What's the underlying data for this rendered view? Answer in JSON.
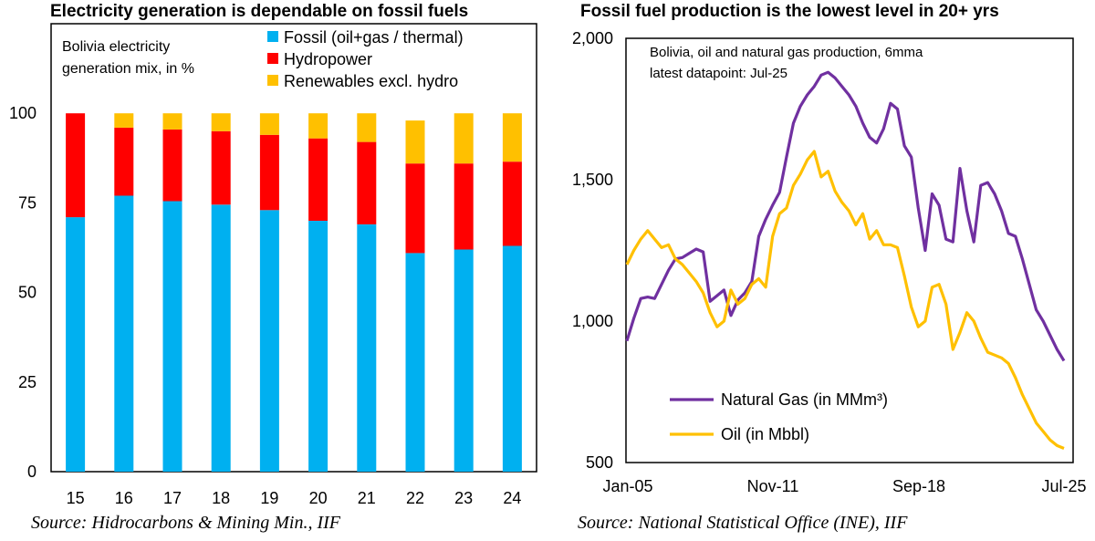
{
  "chart_data": [
    {
      "type": "bar",
      "stacked": true,
      "title": "Electricity generation is dependable on fossil fuels",
      "subtitle_line1": "Bolivia electricity",
      "subtitle_line2": "generation mix, in %",
      "source": "Source: Hidrocarbons & Mining Min., IIF",
      "categories": [
        "15",
        "16",
        "17",
        "18",
        "19",
        "20",
        "21",
        "22",
        "23",
        "24"
      ],
      "yticks": [
        "0",
        "25",
        "50",
        "75",
        "100"
      ],
      "ylim": [
        0,
        125
      ],
      "grid": false,
      "legend_position": "top-right",
      "series": [
        {
          "name": "Fossil (oil+gas / thermal)",
          "color": "#00B0F0",
          "values": [
            71,
            77,
            75.5,
            74.5,
            73,
            70,
            69,
            61,
            62,
            63
          ]
        },
        {
          "name": "Hydropower",
          "color": "#FF0000",
          "values": [
            29,
            19,
            20,
            20.5,
            21,
            23,
            23,
            25,
            24,
            23.5
          ]
        },
        {
          "name": "Renewables excl. hydro",
          "color": "#FFC000",
          "values": [
            0,
            4,
            4.5,
            5,
            6,
            7,
            8,
            12,
            14,
            13.5
          ]
        }
      ]
    },
    {
      "type": "line",
      "title": "Fossil fuel production is the lowest level in 20+ yrs",
      "subtitle_line1": "Bolivia, oil and natural gas production, 6mma",
      "subtitle_line2": "latest datapoint: Jul-25",
      "source": "Source: National Statistical Office (INE), IIF",
      "xticks": [
        "Jan-05",
        "Nov-11",
        "Sep-18",
        "Jul-25"
      ],
      "yticks": [
        "500",
        "1,000",
        "1,500",
        "2,000"
      ],
      "ylim": [
        500,
        2000
      ],
      "grid": false,
      "legend_position": "bottom-left",
      "x_start": "Jan-05",
      "x_end": "Jul-25",
      "series": [
        {
          "name": "Natural Gas (in MMm³)",
          "color": "#7030A0",
          "values": [
            930,
            1010,
            1080,
            1085,
            1080,
            1130,
            1180,
            1220,
            1225,
            1240,
            1255,
            1245,
            1070,
            1090,
            1110,
            1020,
            1075,
            1100,
            1140,
            1300,
            1360,
            1410,
            1455,
            1580,
            1700,
            1760,
            1800,
            1830,
            1870,
            1880,
            1860,
            1830,
            1800,
            1760,
            1700,
            1650,
            1630,
            1680,
            1770,
            1750,
            1620,
            1580,
            1400,
            1250,
            1450,
            1410,
            1290,
            1280,
            1540,
            1390,
            1280,
            1480,
            1490,
            1450,
            1390,
            1310,
            1300,
            1220,
            1130,
            1040,
            1000,
            950,
            900,
            860
          ]
        },
        {
          "name": "Oil (in Mbbl)",
          "color": "#FFC000",
          "values": [
            1200,
            1250,
            1290,
            1320,
            1290,
            1260,
            1270,
            1220,
            1200,
            1170,
            1140,
            1100,
            1030,
            980,
            1000,
            1110,
            1060,
            1080,
            1130,
            1150,
            1120,
            1300,
            1380,
            1400,
            1480,
            1520,
            1570,
            1600,
            1510,
            1530,
            1460,
            1420,
            1390,
            1340,
            1380,
            1290,
            1320,
            1270,
            1270,
            1260,
            1160,
            1050,
            980,
            1000,
            1120,
            1130,
            1060,
            900,
            960,
            1030,
            1000,
            940,
            890,
            880,
            870,
            850,
            800,
            740,
            690,
            640,
            610,
            580,
            560,
            550
          ]
        }
      ]
    }
  ]
}
